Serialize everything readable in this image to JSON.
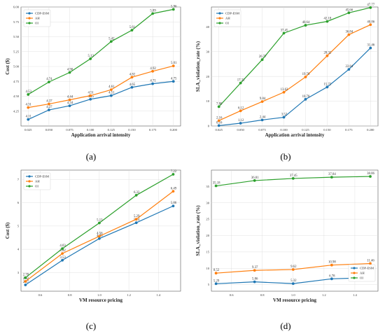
{
  "chart_data": [
    {
      "panel": "(a)",
      "type": "line",
      "xlabel": "Application arrival intensity",
      "ylabel": "Cost ($)",
      "x": [
        0.025,
        0.05,
        0.075,
        0.1,
        0.125,
        0.15,
        0.175,
        0.2
      ],
      "xticks": [
        "0.025",
        "0.050",
        "0.075",
        "0.100",
        "0.125",
        "0.150",
        "0.175",
        "0.200"
      ],
      "ylim": [
        4.0,
        6.0
      ],
      "yticks": [
        "4.25",
        "4.50",
        "4.75",
        "5.00",
        "5.25",
        "5.50",
        "5.75",
        "6.00"
      ],
      "grid": true,
      "legend": "top-left",
      "series": [
        {
          "name": "CDP-ESM",
          "color": "#1f77b4",
          "values": [
            4.11,
            4.27,
            4.34,
            4.45,
            4.51,
            4.65,
            4.71,
            4.75
          ],
          "labels": [
            "4.11",
            "4.27",
            "4.34",
            "4.45",
            "4.51",
            "4.65",
            "4.71",
            "4.75"
          ]
        },
        {
          "name": "AH",
          "color": "#ff7f0e",
          "values": [
            4.31,
            4.37,
            4.44,
            4.51,
            4.61,
            4.82,
            4.92,
            5.01
          ],
          "labels": [
            "4.31",
            "4.37",
            "4.44",
            "4.51",
            "4.61",
            "4.82",
            "4.92",
            "5.01"
          ]
        },
        {
          "name": "OI",
          "color": "#2ca02c",
          "values": [
            4.53,
            4.74,
            4.9,
            5.13,
            5.42,
            5.61,
            5.89,
            5.96
          ],
          "labels": [
            "4.53",
            "4.74",
            "4.90",
            "5.13",
            "5.42",
            "5.61",
            "5.89",
            "5.96"
          ]
        }
      ]
    },
    {
      "panel": "(b)",
      "type": "line",
      "xlabel": "Application arrival intensity",
      "ylabel": "SLA_violation_rate (%)",
      "x": [
        0.025,
        0.05,
        0.075,
        0.1,
        0.125,
        0.15,
        0.175,
        0.2
      ],
      "xticks": [
        "0.025",
        "0.050",
        "0.075",
        "0.100",
        "0.125",
        "0.150",
        "0.175",
        "0.200"
      ],
      "ylim": [
        0,
        48
      ],
      "yticks": [
        "0",
        "10",
        "20",
        "30",
        "40"
      ],
      "grid": true,
      "legend": "top-left",
      "series": [
        {
          "name": "CDP-ESM",
          "color": "#1f77b4",
          "values": [
            0.16,
            1.12,
            2.44,
            3.52,
            10.78,
            15.72,
            22.84,
            31.46
          ],
          "labels": [
            "0.16",
            "1.12",
            "2.44",
            "3.52",
            "10.78",
            "15.72",
            "22.84",
            "31.46"
          ]
        },
        {
          "name": "AH",
          "color": "#ff7f0e",
          "values": [
            2.16,
            6.12,
            9.84,
            13.62,
            19.78,
            28.32,
            36.84,
            40.86
          ],
          "labels": [
            "2.16",
            "6.12",
            "9.84",
            "13.62",
            "19.78",
            "28.32",
            "36.84",
            "40.86"
          ]
        },
        {
          "name": "OI",
          "color": "#2ca02c",
          "values": [
            7.8,
            17.32,
            26.77,
            37.45,
            40.64,
            42.18,
            45.66,
            47.77
          ],
          "labels": [
            "7.80",
            "17.32",
            "26.77",
            "37.45",
            "40.64",
            "42.18",
            "45.66",
            "47.77"
          ]
        }
      ]
    },
    {
      "panel": "(c)",
      "type": "line",
      "xlabel": "VM resource pricing",
      "ylabel": "Cost ($)",
      "x": [
        0.5,
        0.75,
        1.0,
        1.25,
        1.5
      ],
      "xticks": [
        "0.6",
        "0.8",
        "1.0",
        "1.2",
        "1.4"
      ],
      "xtick_values": [
        0.6,
        0.8,
        1.0,
        1.2,
        1.4
      ],
      "xlim": [
        0.47,
        1.55
      ],
      "ylim": [
        2.2,
        7.4
      ],
      "yticks": [
        "3",
        "4",
        "5",
        "6",
        "7"
      ],
      "grid": true,
      "legend": "top-left",
      "series": [
        {
          "name": "CDP-ESM",
          "color": "#1f77b4",
          "values": [
            2.47,
            3.53,
            4.46,
            5.14,
            5.86
          ],
          "labels": [
            "2.47",
            "3.53",
            "4.46",
            "5.14",
            "5.86"
          ]
        },
        {
          "name": "AH",
          "color": "#ff7f0e",
          "values": [
            2.62,
            3.82,
            4.56,
            5.29,
            6.49
          ],
          "labels": [
            "2.62",
            "3.82",
            "4.56",
            "5.29",
            "6.49"
          ]
        },
        {
          "name": "OI",
          "color": "#2ca02c",
          "values": [
            2.78,
            4.03,
            5.13,
            6.32,
            7.22
          ],
          "labels": [
            "2.78",
            "4.03",
            "5.13",
            "6.32",
            "7.22"
          ]
        }
      ]
    },
    {
      "panel": "(d)",
      "type": "line",
      "xlabel": "VM resource pricing",
      "ylabel": "SLA_violation_rate (%)",
      "x": [
        0.5,
        0.75,
        1.0,
        1.25,
        1.5
      ],
      "xticks": [
        "0.6",
        "0.8",
        "1.0",
        "1.2",
        "1.4"
      ],
      "xtick_values": [
        0.6,
        0.8,
        1.0,
        1.2,
        1.4
      ],
      "xlim": [
        0.47,
        1.55
      ],
      "ylim": [
        3,
        40
      ],
      "yticks": [
        "5",
        "10",
        "15",
        "20",
        "25",
        "30",
        "35"
      ],
      "grid": true,
      "legend": "bottom-right",
      "series": [
        {
          "name": "CDP-ESM",
          "color": "#1f77b4",
          "values": [
            5.29,
            5.86,
            5.32,
            6.78,
            7.15
          ],
          "labels": [
            "5.29",
            "5.86",
            "5.32",
            "6.78",
            "7.15"
          ]
        },
        {
          "name": "AH",
          "color": "#ff7f0e",
          "values": [
            8.52,
            9.37,
            9.62,
            10.98,
            11.46
          ],
          "labels": [
            "8.52",
            "9.37",
            "9.62",
            "10.98",
            "11.46"
          ]
        },
        {
          "name": "OI",
          "color": "#2ca02c",
          "values": [
            35.18,
            36.81,
            37.45,
            37.84,
            38.06
          ],
          "labels": [
            "35.18",
            "36.81",
            "37.45",
            "37.84",
            "38.06"
          ]
        }
      ]
    }
  ]
}
